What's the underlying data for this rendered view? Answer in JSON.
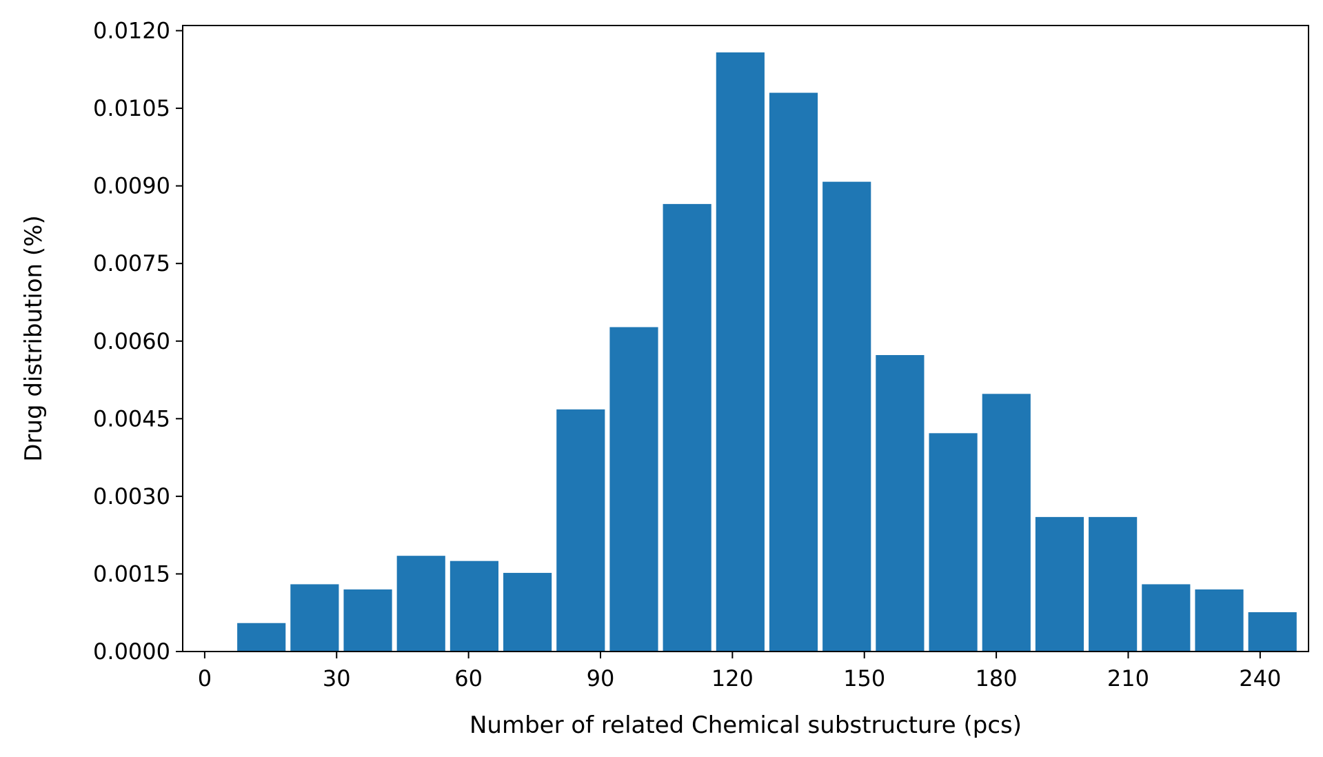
{
  "chart_data": {
    "type": "bar",
    "title": "",
    "xlabel": "Number of related Chemical substructure (pcs)",
    "ylabel": "Drug distribution (%)",
    "xlim": [
      -5,
      251
    ],
    "ylim": [
      0,
      0.0121
    ],
    "grid": false,
    "legend": "none",
    "bar_color": "#1f77b4",
    "bin_width": 12.1,
    "x_ticks": [
      0,
      30,
      60,
      90,
      120,
      150,
      180,
      210,
      240
    ],
    "x_tick_labels": [
      "0",
      "30",
      "60",
      "90",
      "120",
      "150",
      "180",
      "210",
      "240"
    ],
    "y_ticks": [
      0,
      0.0015,
      0.003,
      0.0045,
      0.006,
      0.0075,
      0.009,
      0.0105,
      0.012
    ],
    "y_tick_labels": [
      "0.0000",
      "0.0015",
      "0.0030",
      "0.0045",
      "0.0060",
      "0.0075",
      "0.0090",
      "0.0105",
      "0.0120"
    ],
    "bin_starts": [
      7.4,
      19.5,
      31.6,
      43.7,
      55.8,
      67.9,
      80.0,
      92.1,
      104.2,
      116.3,
      128.4,
      140.5,
      152.6,
      164.7,
      176.8,
      188.9,
      201.0,
      213.1,
      225.2,
      237.3
    ],
    "values": [
      0.00055,
      0.0013,
      0.0012,
      0.00185,
      0.00175,
      0.00152,
      0.00468,
      0.00627,
      0.00865,
      0.01158,
      0.0108,
      0.00908,
      0.00573,
      0.00422,
      0.00498,
      0.0026,
      0.0026,
      0.0013,
      0.0012,
      0.00076
    ]
  }
}
